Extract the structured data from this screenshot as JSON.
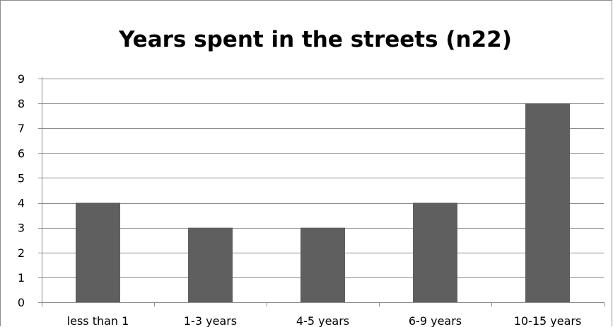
{
  "chart_data": {
    "type": "bar",
    "title": "Years spent in the streets (n22)",
    "categories": [
      "less than 1",
      "1-3 years",
      "4-5 years",
      "6-9 years",
      "10-15 years"
    ],
    "values": [
      4,
      3,
      3,
      4,
      8
    ],
    "xlabel": "",
    "ylabel": "",
    "ylim": [
      0,
      9
    ],
    "yticks": [
      0,
      1,
      2,
      3,
      4,
      5,
      6,
      7,
      8,
      9
    ],
    "grid": true,
    "legend": "none",
    "colors": {
      "bar": "#5f5f5f",
      "grid": "#8c8c8c",
      "axis": "#8c8c8c",
      "text": "#000000"
    }
  }
}
